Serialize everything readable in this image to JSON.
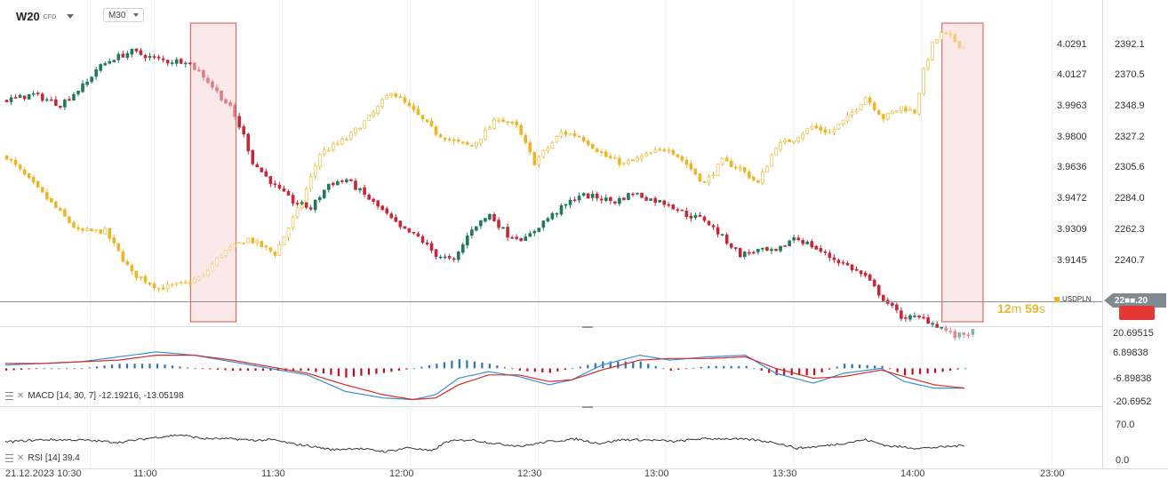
{
  "symbol": {
    "name": "W20",
    "type": "CFD",
    "timeframe": "M30"
  },
  "colors": {
    "bull": "#1f7a5a",
    "bear": "#c62839",
    "usdpln": "#f0b429",
    "macd_line": "#3a8fd6",
    "signal_line": "#d62a2a",
    "rsi_line": "#333333",
    "highlight": "#d9534f",
    "price_tag": "#7f8a93"
  },
  "chart_data": [
    {
      "type": "candlestick",
      "name": "main-price",
      "series": [
        {
          "name": "W20",
          "axis": "left",
          "price_range": [
            3.906,
            4.0453
          ],
          "ticks": [
            "4.0291",
            "4.0127",
            "3.9963",
            "3.9800",
            "3.9636",
            "3.9472",
            "3.9309",
            "3.9145"
          ],
          "path": [
            [
              0,
              4.008
            ],
            [
              6,
              4.0105
            ],
            [
              12,
              4.006
            ],
            [
              18,
              4.016
            ],
            [
              20,
              4.022
            ],
            [
              24,
              4.027
            ],
            [
              28,
              4.03
            ],
            [
              32,
              4.0275
            ],
            [
              36,
              4.0255
            ],
            [
              40,
              4.026
            ],
            [
              44,
              4.019
            ],
            [
              50,
              4.0045
            ],
            [
              53,
              3.992
            ],
            [
              55,
              3.98
            ],
            [
              60,
              3.969
            ],
            [
              64,
              3.962
            ],
            [
              68,
              3.959
            ],
            [
              72,
              3.97
            ],
            [
              76,
              3.972
            ],
            [
              80,
              3.965
            ],
            [
              84,
              3.958
            ],
            [
              88,
              3.95
            ],
            [
              92,
              3.946
            ],
            [
              96,
              3.938
            ],
            [
              100,
              3.935
            ],
            [
              104,
              3.95
            ],
            [
              108,
              3.956
            ],
            [
              112,
              3.947
            ],
            [
              116,
              3.945
            ],
            [
              120,
              3.953
            ],
            [
              124,
              3.959
            ],
            [
              128,
              3.965
            ],
            [
              132,
              3.964
            ],
            [
              136,
              3.962
            ],
            [
              140,
              3.966
            ],
            [
              144,
              3.963
            ],
            [
              148,
              3.961
            ],
            [
              152,
              3.956
            ],
            [
              156,
              3.954
            ],
            [
              160,
              3.946
            ],
            [
              164,
              3.938
            ],
            [
              168,
              3.94
            ],
            [
              172,
              3.939
            ],
            [
              176,
              3.946
            ],
            [
              180,
              3.942
            ],
            [
              184,
              3.937
            ],
            [
              188,
              3.933
            ],
            [
              192,
              3.928
            ],
            [
              196,
              3.918
            ],
            [
              200,
              3.91
            ],
            [
              205,
              3.909
            ],
            [
              209,
              3.905
            ],
            [
              212,
              3.901
            ],
            [
              214,
              3.902
            ],
            [
              216,
              3.903
            ]
          ]
        },
        {
          "name": "USDPLN",
          "axis": "right",
          "price_range": [
            2197.0,
            2403.0
          ],
          "path": [
            [
              0,
              2310
            ],
            [
              8,
              2285
            ],
            [
              16,
              2260
            ],
            [
              22,
              2260
            ],
            [
              28,
              2232
            ],
            [
              34,
              2222
            ],
            [
              40,
              2225
            ],
            [
              44,
              2230
            ],
            [
              48,
              2245
            ],
            [
              54,
              2255
            ],
            [
              60,
              2245
            ],
            [
              66,
              2280
            ],
            [
              70,
              2312
            ],
            [
              76,
              2322
            ],
            [
              82,
              2339
            ],
            [
              86,
              2354
            ],
            [
              90,
              2343
            ],
            [
              96,
              2326
            ],
            [
              100,
              2320
            ],
            [
              104,
              2317
            ],
            [
              110,
              2336
            ],
            [
              114,
              2330
            ],
            [
              118,
              2306
            ],
            [
              124,
              2326
            ],
            [
              128,
              2324
            ],
            [
              134,
              2310
            ],
            [
              138,
              2305
            ],
            [
              144,
              2312
            ],
            [
              148,
              2316
            ],
            [
              152,
              2305
            ],
            [
              156,
              2292
            ],
            [
              160,
              2307
            ],
            [
              164,
              2302
            ],
            [
              168,
              2292
            ],
            [
              172,
              2317
            ],
            [
              176,
              2322
            ],
            [
              180,
              2330
            ],
            [
              184,
              2326
            ],
            [
              188,
              2336
            ],
            [
              192,
              2350
            ],
            [
              196,
              2336
            ],
            [
              200,
              2343
            ],
            [
              203,
              2340
            ],
            [
              205,
              2367
            ],
            [
              207,
              2385
            ],
            [
              209,
              2392
            ],
            [
              211,
              2390
            ],
            [
              213,
              2385
            ],
            [
              214,
              2384
            ]
          ]
        }
      ],
      "candles_total": 216,
      "highlight_windows": [
        [
          42,
          51
        ],
        [
          210,
          218
        ]
      ],
      "current_price_label": "22■■.20",
      "countdown": {
        "minutes": "12",
        "m": "m",
        "seconds": "59",
        "s": "s"
      },
      "legend": "USDPLN"
    },
    {
      "type": "line",
      "name": "MACD",
      "label": "MACD [14, 30, 7] -12.19216, -13.05198",
      "ylim": [
        -22.5,
        24.0
      ],
      "ticks": [
        "20.69515",
        "6.89838",
        "-6.89838",
        "-20.6952"
      ],
      "macd_path": [
        [
          0,
          2
        ],
        [
          10,
          3
        ],
        [
          20,
          4
        ],
        [
          30,
          7
        ],
        [
          40,
          10
        ],
        [
          50,
          8
        ],
        [
          60,
          4
        ],
        [
          70,
          0
        ],
        [
          80,
          -4
        ],
        [
          90,
          -14
        ],
        [
          100,
          -18
        ],
        [
          108,
          -19
        ],
        [
          114,
          -16
        ],
        [
          120,
          -6
        ],
        [
          128,
          -2
        ],
        [
          136,
          -5
        ],
        [
          144,
          -10
        ],
        [
          150,
          -7
        ],
        [
          158,
          2
        ],
        [
          168,
          8
        ],
        [
          176,
          5
        ],
        [
          186,
          7
        ],
        [
          196,
          8
        ],
        [
          204,
          -3
        ],
        [
          214,
          -9
        ],
        [
          222,
          -3
        ],
        [
          232,
          0
        ],
        [
          238,
          -8
        ],
        [
          246,
          -12
        ],
        [
          254,
          -12
        ]
      ],
      "signal_path": [
        [
          0,
          3
        ],
        [
          10,
          3
        ],
        [
          20,
          4
        ],
        [
          30,
          5
        ],
        [
          40,
          8
        ],
        [
          50,
          8
        ],
        [
          60,
          5
        ],
        [
          70,
          1
        ],
        [
          80,
          -3
        ],
        [
          90,
          -10
        ],
        [
          100,
          -16
        ],
        [
          108,
          -19
        ],
        [
          114,
          -18
        ],
        [
          120,
          -10
        ],
        [
          128,
          -4
        ],
        [
          136,
          -4
        ],
        [
          144,
          -8
        ],
        [
          150,
          -7
        ],
        [
          158,
          -1
        ],
        [
          168,
          5
        ],
        [
          176,
          6
        ],
        [
          186,
          6
        ],
        [
          196,
          7
        ],
        [
          204,
          0
        ],
        [
          214,
          -6
        ],
        [
          222,
          -5
        ],
        [
          232,
          -1
        ],
        [
          238,
          -5
        ],
        [
          246,
          -10
        ],
        [
          254,
          -12
        ]
      ]
    },
    {
      "type": "line",
      "name": "RSI",
      "label": "RSI [14] 39.4",
      "ylim": [
        -30.0,
        128.0
      ],
      "ticks": [
        "70.0",
        "0.0"
      ],
      "path": [
        [
          0,
          39
        ],
        [
          10,
          45
        ],
        [
          20,
          44
        ],
        [
          30,
          38
        ],
        [
          40,
          52
        ],
        [
          46,
          58
        ],
        [
          52,
          48
        ],
        [
          60,
          47
        ],
        [
          66,
          43
        ],
        [
          70,
          45
        ],
        [
          76,
          33
        ],
        [
          80,
          28
        ],
        [
          86,
          18
        ],
        [
          92,
          22
        ],
        [
          100,
          13
        ],
        [
          106,
          24
        ],
        [
          112,
          14
        ],
        [
          116,
          40
        ],
        [
          122,
          45
        ],
        [
          130,
          33
        ],
        [
          136,
          28
        ],
        [
          142,
          39
        ],
        [
          150,
          47
        ],
        [
          156,
          35
        ],
        [
          162,
          45
        ],
        [
          170,
          44
        ],
        [
          176,
          40
        ],
        [
          182,
          47
        ],
        [
          188,
          48
        ],
        [
          196,
          45
        ],
        [
          202,
          38
        ],
        [
          208,
          22
        ],
        [
          214,
          27
        ],
        [
          220,
          35
        ],
        [
          226,
          45
        ],
        [
          232,
          28
        ],
        [
          240,
          22
        ],
        [
          246,
          25
        ],
        [
          252,
          30
        ]
      ]
    }
  ],
  "time_axis": {
    "labels": [
      "21.12.2023 10:30",
      "11:00",
      "11:30",
      "12:00",
      "12:30",
      "13:00",
      "13:30",
      "14:00",
      "23:00"
    ]
  }
}
